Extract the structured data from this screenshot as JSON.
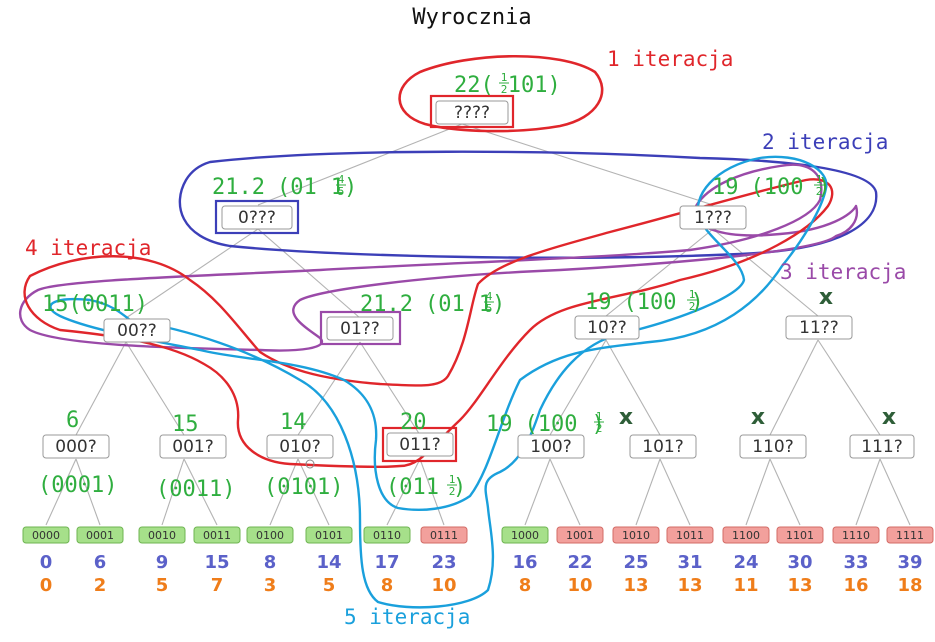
{
  "title": "Wyrocznia",
  "colors": {
    "estimate": "#2fae3f",
    "iter1": "#e0262b",
    "iter2": "#3c3fb8",
    "iter3": "#9a4aa8",
    "iter4": "#e0262b",
    "iter5": "#1aa0dc",
    "leaf_ok": "#a6e08a",
    "leaf_bad": "#f2a09c",
    "value_top": "#5b61c9",
    "value_bottom": "#ef7d1a",
    "cross": "#2e5e38",
    "edge": "#b3b3b3"
  },
  "iterations": {
    "it1": "1 iteracja",
    "it2": "2 iteracja",
    "it3": "3 iteracja",
    "it4": "4 iteracja",
    "it5": "5 iteracja"
  },
  "nodes": {
    "root": "????",
    "n0": "0???",
    "n1": "1???",
    "n00": "00??",
    "n01": "01??",
    "n10": "10??",
    "n11": "11??",
    "n000": "000?",
    "n001": "001?",
    "n010": "010?",
    "n011": "011?",
    "n100": "100?",
    "n101": "101?",
    "n110": "110?",
    "n111": "111?"
  },
  "estimates": {
    "root_val": "22",
    "n0_val": "21.2",
    "n1_val": "19",
    "n00_val": "15",
    "n01_val": "21.2",
    "n10_val": "19",
    "n000_val": "6",
    "n001_val": "15",
    "n010_val": "14",
    "n011_val": "20",
    "n100_val": "19",
    "n000_seq": "(0001)",
    "n001_seq": "(0011)",
    "n010_seq": "(0101)",
    "n00_seq": "(0011)",
    "root_pre": "(",
    "root_frac_num": "1",
    "root_frac_den": "2",
    "root_post": "101)",
    "n0_pre": "(01",
    "n0_frac_num": "4",
    "n0_frac_den": "5",
    "n0_post": "1)",
    "n01_pre": "(01",
    "n01_frac_num": "4",
    "n01_frac_den": "5",
    "n01_post": "1)",
    "n1_pre": "(100",
    "n1_frac_num": "1",
    "n1_frac_den": "2",
    "n1_post": ")",
    "n10_pre": "(100",
    "n10_frac_num": "1",
    "n10_frac_den": "2",
    "n10_post": ")",
    "n100_pre": "(100",
    "n100_frac_num": "1",
    "n100_frac_den": "2",
    "n100_post": ")",
    "n011_pre": "(011",
    "n011_frac_num": "1",
    "n011_frac_den": "2",
    "n011_post": ")"
  },
  "crosses": {
    "n11": "x",
    "n101": "x",
    "n110": "x",
    "n111": "x"
  },
  "leaves": [
    {
      "label": "0000",
      "state": "ok",
      "top": "0",
      "bottom": "0"
    },
    {
      "label": "0001",
      "state": "ok",
      "top": "6",
      "bottom": "2"
    },
    {
      "label": "0010",
      "state": "ok",
      "top": "9",
      "bottom": "5"
    },
    {
      "label": "0011",
      "state": "ok",
      "top": "15",
      "bottom": "7"
    },
    {
      "label": "0100",
      "state": "ok",
      "top": "8",
      "bottom": "3"
    },
    {
      "label": "0101",
      "state": "ok",
      "top": "14",
      "bottom": "5"
    },
    {
      "label": "0110",
      "state": "ok",
      "top": "17",
      "bottom": "8"
    },
    {
      "label": "0111",
      "state": "bad",
      "top": "23",
      "bottom": "10"
    },
    {
      "label": "1000",
      "state": "ok",
      "top": "16",
      "bottom": "8"
    },
    {
      "label": "1001",
      "state": "bad",
      "top": "22",
      "bottom": "10"
    },
    {
      "label": "1010",
      "state": "bad",
      "top": "25",
      "bottom": "13"
    },
    {
      "label": "1011",
      "state": "bad",
      "top": "31",
      "bottom": "13"
    },
    {
      "label": "1100",
      "state": "bad",
      "top": "24",
      "bottom": "11"
    },
    {
      "label": "1101",
      "state": "bad",
      "top": "30",
      "bottom": "13"
    },
    {
      "label": "1110",
      "state": "bad",
      "top": "33",
      "bottom": "16"
    },
    {
      "label": "1111",
      "state": "bad",
      "top": "39",
      "bottom": "18"
    }
  ]
}
